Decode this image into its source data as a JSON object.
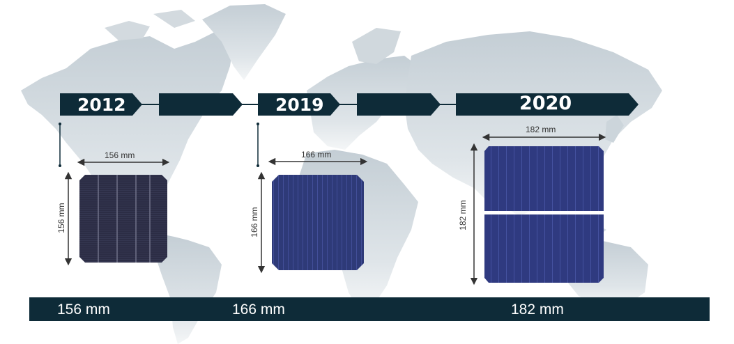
{
  "timeline": {
    "years": [
      "2012",
      "2019",
      "2020"
    ]
  },
  "cells": [
    {
      "year": "2012",
      "width_label": "156 mm",
      "height_label": "156 mm"
    },
    {
      "year": "2019",
      "width_label": "166 mm",
      "height_label": "166 mm"
    },
    {
      "year": "2020",
      "width_label": "182 mm",
      "height_label": "182 mm"
    }
  ],
  "bottom_bar": {
    "labels": [
      "156 mm",
      "166 mm",
      "182 mm"
    ]
  },
  "colors": {
    "banner": "#0e2b38",
    "map": "#c9d2d8",
    "cell_2012": "#2c2d45",
    "cell_2019": "#2e3a78",
    "cell_2020": "#2f3a80"
  },
  "icons": [
    "world-map"
  ]
}
